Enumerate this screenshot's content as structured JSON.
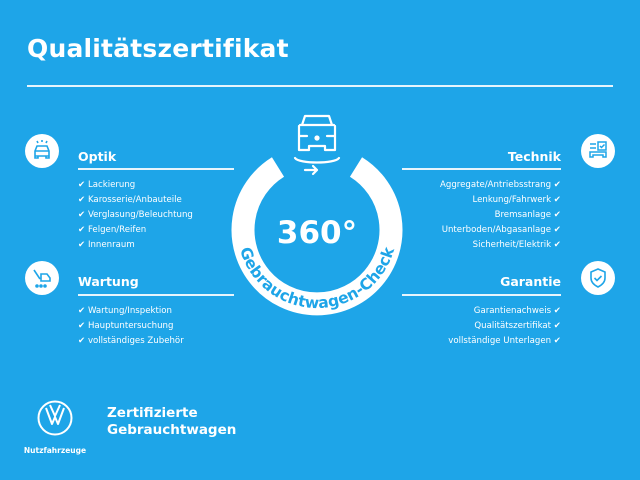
{
  "title": "Qualitätszertifikat",
  "colors": {
    "background": "#1ea5e8",
    "foreground": "#ffffff"
  },
  "check_icon": "✔",
  "center": {
    "value": "360°",
    "caption": "Gebrauchtwagen-Check",
    "icon": "car-rotate-icon"
  },
  "sections": {
    "optik": {
      "heading": "Optik",
      "icon": "car-light-icon",
      "items": [
        "Lackierung",
        "Karosserie/Anbauteile",
        "Verglasung/Beleuchtung",
        "Felgen/Reifen",
        "Innenraum"
      ]
    },
    "wartung": {
      "heading": "Wartung",
      "icon": "service-truck-icon",
      "items": [
        "Wartung/Inspektion",
        "Hauptuntersuchung",
        "vollständiges Zubehör"
      ]
    },
    "technik": {
      "heading": "Technik",
      "icon": "car-checklist-icon",
      "items": [
        "Aggregate/Antriebsstrang",
        "Lenkung/Fahrwerk",
        "Bremsanlage",
        "Unterboden/Abgasanlage",
        "Sicherheit/Elektrik"
      ]
    },
    "garantie": {
      "heading": "Garantie",
      "icon": "shield-check-icon",
      "items": [
        "Garantienachweis",
        "Qualitätszertifikat",
        "vollständige Unterlagen"
      ]
    }
  },
  "footer": {
    "logo_sub": "Nutzfahrzeuge",
    "brand_line1": "Zertifizierte",
    "brand_line2": "Gebrauchtwagen"
  }
}
